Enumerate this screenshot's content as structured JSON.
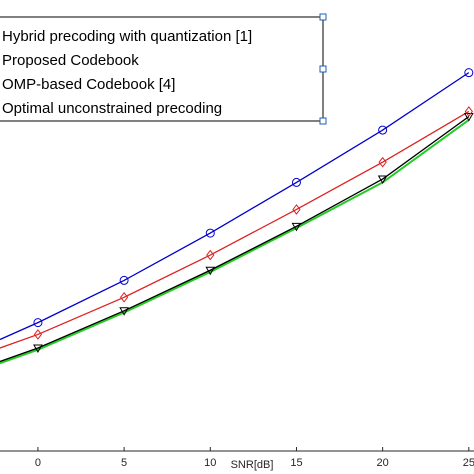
{
  "chart_data": {
    "type": "line",
    "xlabel": "SNR[dB]",
    "ylabel": "",
    "xlim": [
      -2.2,
      25.3
    ],
    "ylim": [
      1.5,
      14.85
    ],
    "x_ticks": [
      0,
      5,
      10,
      15,
      20,
      25
    ],
    "x_tick_labels": [
      "0",
      "5",
      "10",
      "15",
      "20",
      "25"
    ],
    "grid": false,
    "legend_position": "top-left",
    "series": [
      {
        "name": "Hybrid precoding with quantization [1]",
        "color": "#0000cc",
        "marker": "circle",
        "x": [
          -2.2,
          0,
          5,
          10,
          15,
          20,
          25
        ],
        "y": [
          4.8,
          5.3,
          6.55,
          7.95,
          9.45,
          11.0,
          12.7
        ]
      },
      {
        "name": "Proposed Codebook",
        "color": "#dd2222",
        "marker": "diamond",
        "x": [
          -2.2,
          0,
          5,
          10,
          15,
          20,
          25
        ],
        "y": [
          4.55,
          4.95,
          6.05,
          7.3,
          8.65,
          10.05,
          11.55
        ]
      },
      {
        "name": "OMP-based Codebook [4]",
        "color": "#000000",
        "marker": "triangle-down",
        "x": [
          -2.2,
          0,
          5,
          10,
          15,
          20,
          25
        ],
        "y": [
          4.15,
          4.55,
          5.65,
          6.85,
          8.15,
          9.55,
          11.4
        ]
      },
      {
        "name": "Optimal unconstrained precoding",
        "color": "#22cc22",
        "marker": "none",
        "x": [
          -2.2,
          0,
          5,
          10,
          15,
          20,
          25
        ],
        "y": [
          4.1,
          4.5,
          5.6,
          6.8,
          8.1,
          9.45,
          11.3
        ]
      }
    ]
  }
}
